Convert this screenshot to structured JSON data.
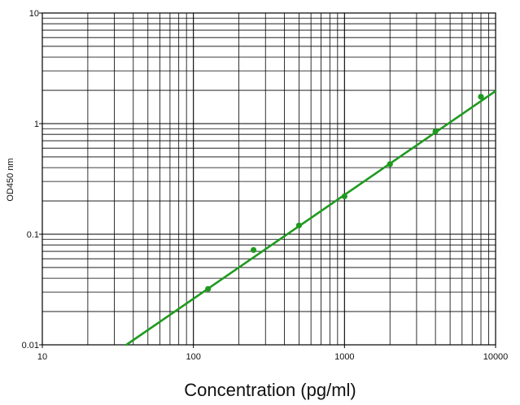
{
  "chart_data": {
    "type": "scatter",
    "title": "",
    "xlabel": "Concentration (pg/ml)",
    "ylabel": "OD450 nm",
    "x_scale": "log",
    "y_scale": "log",
    "xlim": [
      10,
      10000
    ],
    "ylim": [
      0.01,
      10
    ],
    "x_ticks": [
      "10",
      "100",
      "1000",
      "10000"
    ],
    "y_ticks": [
      "10",
      "1",
      "0.1",
      "0.01"
    ],
    "grid": true,
    "legend": "none",
    "series": [
      {
        "points": [
          {
            "x": 125,
            "y": 0.032
          },
          {
            "x": 250,
            "y": 0.072
          },
          {
            "x": 500,
            "y": 0.12
          },
          {
            "x": 1000,
            "y": 0.22
          },
          {
            "x": 2000,
            "y": 0.43
          },
          {
            "x": 4000,
            "y": 0.85
          },
          {
            "x": 8000,
            "y": 1.75
          }
        ],
        "fit_line": {
          "x": [
            36,
            10000
          ],
          "y": [
            0.01,
            1.97
          ]
        }
      }
    ],
    "colors": {
      "series": "#1f9a1f",
      "grid": "#000000",
      "background": "#ffffff"
    }
  }
}
